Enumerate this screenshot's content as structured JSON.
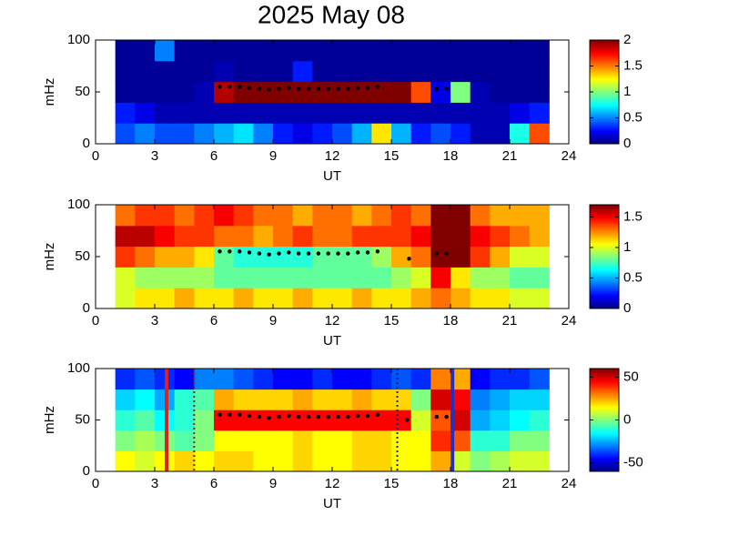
{
  "title": "2025 May 08",
  "chart_data": [
    {
      "type": "heatmap",
      "colormap": "jet",
      "xlabel": "UT",
      "ylabel": "mHz",
      "xlim": [
        0,
        24
      ],
      "xticks": [
        0,
        3,
        6,
        9,
        12,
        15,
        18,
        21,
        24
      ],
      "ylim": [
        0,
        100
      ],
      "yticks": [
        0,
        50,
        100
      ],
      "clim": [
        0,
        2
      ],
      "cticks": [
        0,
        0.5,
        1,
        1.5,
        2
      ],
      "x": [
        1.5,
        2.5,
        3.5,
        4.5,
        5.5,
        6.5,
        7.5,
        8.5,
        9.5,
        10.5,
        11.5,
        12.5,
        13.5,
        14.5,
        15.5,
        16.5,
        17.5,
        18.5,
        19.5,
        20.5,
        21.5,
        22.5
      ],
      "y": [
        10,
        30,
        50,
        70,
        90
      ],
      "z": [
        [
          0.4,
          0.5,
          0.4,
          0.4,
          0.5,
          0.6,
          0.7,
          0.5,
          0.3,
          0.2,
          0.3,
          0.4,
          0.6,
          1.3,
          0.6,
          0.3,
          0.4,
          0.3,
          0.1,
          0.1,
          0.8,
          1.6
        ],
        [
          0.3,
          0.2,
          0.1,
          0.1,
          0.1,
          0.1,
          0.1,
          0.1,
          0.1,
          0.1,
          0.1,
          0.1,
          0.1,
          0.1,
          0.1,
          0.1,
          0.1,
          0.1,
          0.1,
          0.1,
          0.2,
          0.3
        ],
        [
          0.05,
          0.05,
          0.05,
          0.05,
          0.1,
          1.9,
          2,
          2,
          2,
          2,
          2,
          2,
          2,
          2,
          2,
          1.6,
          0.2,
          1.0,
          0.1,
          0.05,
          0.05,
          0.05
        ],
        [
          0.05,
          0.05,
          0.05,
          0.05,
          0.05,
          0.1,
          0.05,
          0.05,
          0.05,
          0.3,
          0.05,
          0.05,
          0.05,
          0.05,
          0.05,
          0.05,
          0.05,
          0.05,
          0.05,
          0.05,
          0.05,
          0.05
        ],
        [
          0.05,
          0.05,
          0.5,
          0.05,
          0.05,
          0.05,
          0.05,
          0.05,
          0.05,
          0.05,
          0.05,
          0.05,
          0.05,
          0.05,
          0.05,
          0.05,
          0.05,
          0.05,
          0.05,
          0.05,
          0.05,
          0.05
        ]
      ],
      "peaks": {
        "color": "#000000",
        "x": [
          6.3,
          6.8,
          7.3,
          7.8,
          8.3,
          8.8,
          9.3,
          9.8,
          10.3,
          10.8,
          11.3,
          11.8,
          12.3,
          12.8,
          13.3,
          13.8,
          14.3,
          17.3,
          17.8
        ],
        "values": [
          55,
          55,
          55,
          54,
          53,
          52,
          53,
          54,
          53,
          53,
          53,
          53,
          53,
          53,
          54,
          54,
          55,
          53,
          53
        ]
      }
    },
    {
      "type": "heatmap",
      "colormap": "jet",
      "xlabel": "UT",
      "ylabel": "mHz",
      "xlim": [
        0,
        24
      ],
      "xticks": [
        0,
        3,
        6,
        9,
        12,
        15,
        18,
        21,
        24
      ],
      "ylim": [
        0,
        100
      ],
      "yticks": [
        0,
        50,
        100
      ],
      "clim": [
        0,
        1.7
      ],
      "cticks": [
        0,
        0.5,
        1,
        1.5
      ],
      "x": [
        1.5,
        2.5,
        3.5,
        4.5,
        5.5,
        6.5,
        7.5,
        8.5,
        9.5,
        10.5,
        11.5,
        12.5,
        13.5,
        14.5,
        15.5,
        16.5,
        17.5,
        18.5,
        19.5,
        20.5,
        21.5,
        22.5
      ],
      "y": [
        10,
        30,
        50,
        70,
        90
      ],
      "z": [
        [
          1.0,
          1.1,
          1.1,
          1.2,
          1.1,
          1.1,
          1.2,
          1.1,
          1.1,
          1.2,
          1.1,
          1.1,
          1.2,
          1.1,
          1.1,
          1.2,
          1.3,
          1.2,
          1.1,
          1.1,
          1.0,
          1.0
        ],
        [
          1.0,
          0.9,
          0.9,
          0.9,
          0.9,
          0.8,
          0.8,
          0.8,
          0.8,
          0.8,
          0.8,
          0.8,
          0.8,
          0.8,
          0.9,
          1.0,
          1.5,
          1.1,
          0.9,
          0.9,
          0.8,
          0.8
        ],
        [
          1.4,
          1.3,
          1.2,
          1.2,
          1.1,
          0.8,
          0.7,
          0.7,
          0.7,
          0.7,
          0.8,
          0.8,
          0.8,
          0.9,
          1.2,
          1.3,
          1.7,
          1.7,
          1.4,
          1.2,
          1.0,
          1.0
        ],
        [
          1.6,
          1.6,
          1.5,
          1.4,
          1.4,
          1.3,
          1.3,
          1.2,
          1.3,
          1.4,
          1.3,
          1.3,
          1.4,
          1.4,
          1.4,
          1.5,
          1.7,
          1.7,
          1.5,
          1.4,
          1.3,
          1.2
        ],
        [
          1.3,
          1.4,
          1.4,
          1.3,
          1.4,
          1.5,
          1.4,
          1.3,
          1.3,
          1.2,
          1.3,
          1.3,
          1.2,
          1.3,
          1.4,
          1.3,
          1.7,
          1.7,
          1.3,
          1.2,
          1.2,
          1.2
        ]
      ],
      "peaks": {
        "color": "#000000",
        "x": [
          6.3,
          6.8,
          7.3,
          7.8,
          8.3,
          8.8,
          9.3,
          9.8,
          10.3,
          10.8,
          11.3,
          11.8,
          12.3,
          12.8,
          13.3,
          13.8,
          14.3,
          15.9,
          17.3,
          17.8
        ],
        "values": [
          55,
          55,
          55,
          54,
          53,
          52,
          53,
          54,
          53,
          53,
          53,
          53,
          53,
          53,
          54,
          54,
          55,
          48,
          53,
          53
        ]
      }
    },
    {
      "type": "heatmap",
      "colormap": "jet",
      "xlabel": "UT",
      "ylabel": "mHz",
      "xlim": [
        0,
        24
      ],
      "xticks": [
        0,
        3,
        6,
        9,
        12,
        15,
        18,
        21,
        24
      ],
      "ylim": [
        0,
        100
      ],
      "yticks": [
        0,
        50,
        100
      ],
      "clim": [
        -60,
        60
      ],
      "cticks": [
        -50,
        0,
        50
      ],
      "x": [
        1.5,
        2.5,
        3.5,
        4.5,
        5.5,
        6.5,
        7.5,
        8.5,
        9.5,
        10.5,
        11.5,
        12.5,
        13.5,
        14.5,
        15.5,
        16.5,
        17.5,
        18.5,
        19.5,
        20.5,
        21.5,
        22.5
      ],
      "y": [
        10,
        30,
        50,
        70,
        90
      ],
      "z": [
        [
          15,
          10,
          15,
          20,
          15,
          20,
          20,
          15,
          15,
          20,
          15,
          15,
          20,
          20,
          15,
          15,
          25,
          10,
          0,
          5,
          10,
          10
        ],
        [
          0,
          5,
          0,
          -5,
          0,
          15,
          15,
          15,
          15,
          20,
          15,
          15,
          20,
          20,
          15,
          15,
          40,
          35,
          -10,
          -10,
          0,
          0
        ],
        [
          -10,
          -5,
          -15,
          -10,
          0,
          45,
          45,
          45,
          45,
          45,
          45,
          45,
          45,
          45,
          45,
          10,
          35,
          50,
          -25,
          -20,
          -15,
          -10
        ],
        [
          -20,
          -15,
          -25,
          -10,
          -5,
          25,
          20,
          20,
          20,
          25,
          20,
          20,
          25,
          20,
          20,
          0,
          50,
          45,
          -30,
          -25,
          -20,
          -20
        ],
        [
          -40,
          -35,
          -40,
          -45,
          -30,
          -30,
          -35,
          -40,
          -45,
          -45,
          -40,
          -45,
          -45,
          -40,
          -35,
          -40,
          30,
          25,
          -45,
          -40,
          -40,
          -35
        ]
      ],
      "peaks": {
        "color": "#000000",
        "x": [
          6.3,
          6.8,
          7.3,
          7.8,
          8.3,
          8.8,
          9.3,
          9.8,
          10.3,
          10.8,
          11.3,
          11.8,
          12.3,
          12.8,
          13.3,
          13.8,
          14.3,
          15.8,
          17.3,
          17.8
        ],
        "values": [
          55,
          55,
          55,
          54,
          53,
          52,
          53,
          54,
          53,
          53,
          53,
          53,
          53,
          53,
          54,
          54,
          55,
          50,
          53,
          53
        ]
      },
      "vlines": [
        {
          "x": 3.6,
          "color": "#e02020",
          "style": "solid"
        },
        {
          "x": 5,
          "color": "#902020",
          "style": "dotted"
        },
        {
          "x": 15.3,
          "color": "#202070",
          "style": "dotted"
        },
        {
          "x": 18.1,
          "color": "#2030c0",
          "style": "solid"
        }
      ]
    }
  ]
}
